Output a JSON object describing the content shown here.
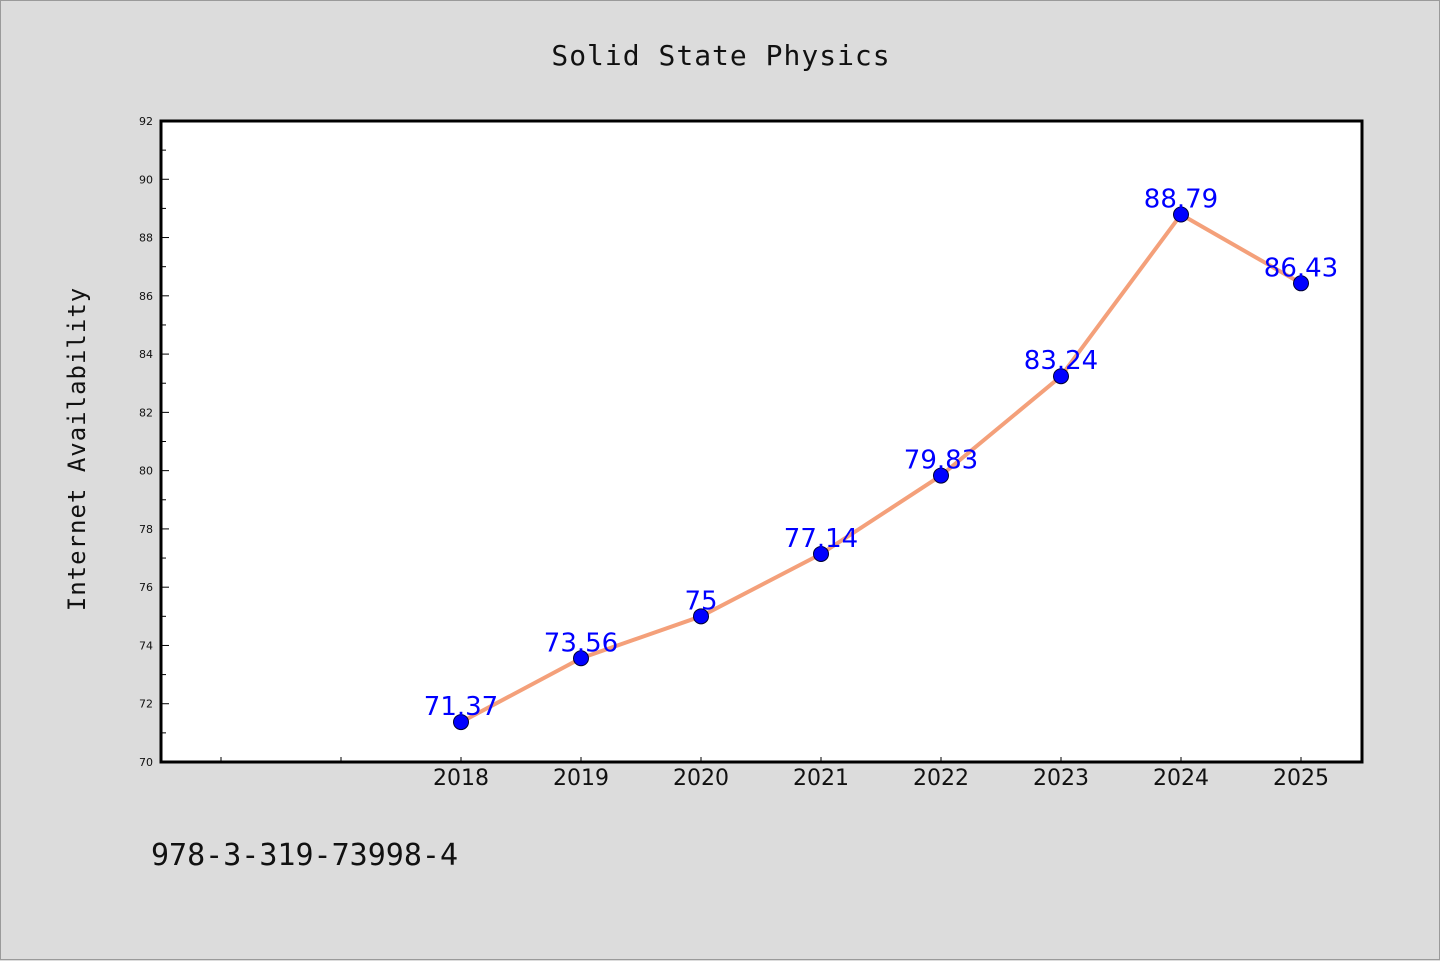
{
  "chart_data": {
    "type": "line",
    "title": "Solid State Physics",
    "xlabel": "",
    "ylabel": "Internet Availability",
    "categories": [
      "2018",
      "2019",
      "2020",
      "2021",
      "2022",
      "2023",
      "2024",
      "2025"
    ],
    "values": [
      71.37,
      73.56,
      75,
      77.14,
      79.83,
      83.24,
      88.79,
      86.43
    ],
    "data_labels": [
      "71.37",
      "73.56",
      "75",
      "77.14",
      "79.83",
      "83.24",
      "88.79",
      "86.43"
    ],
    "ylim": [
      70,
      92
    ],
    "yticks": [
      "70",
      "72",
      "74",
      "76",
      "78",
      "80",
      "82",
      "84",
      "86",
      "88",
      "90",
      "92"
    ],
    "grid": false,
    "line_color": "#f4a07a",
    "marker_color": "#0000ff",
    "label_color": "#0000ff",
    "plot_background": "#ffffff",
    "figure_background": "#dcdcdc"
  },
  "footer": {
    "isbn": "978-3-319-73998-4"
  }
}
